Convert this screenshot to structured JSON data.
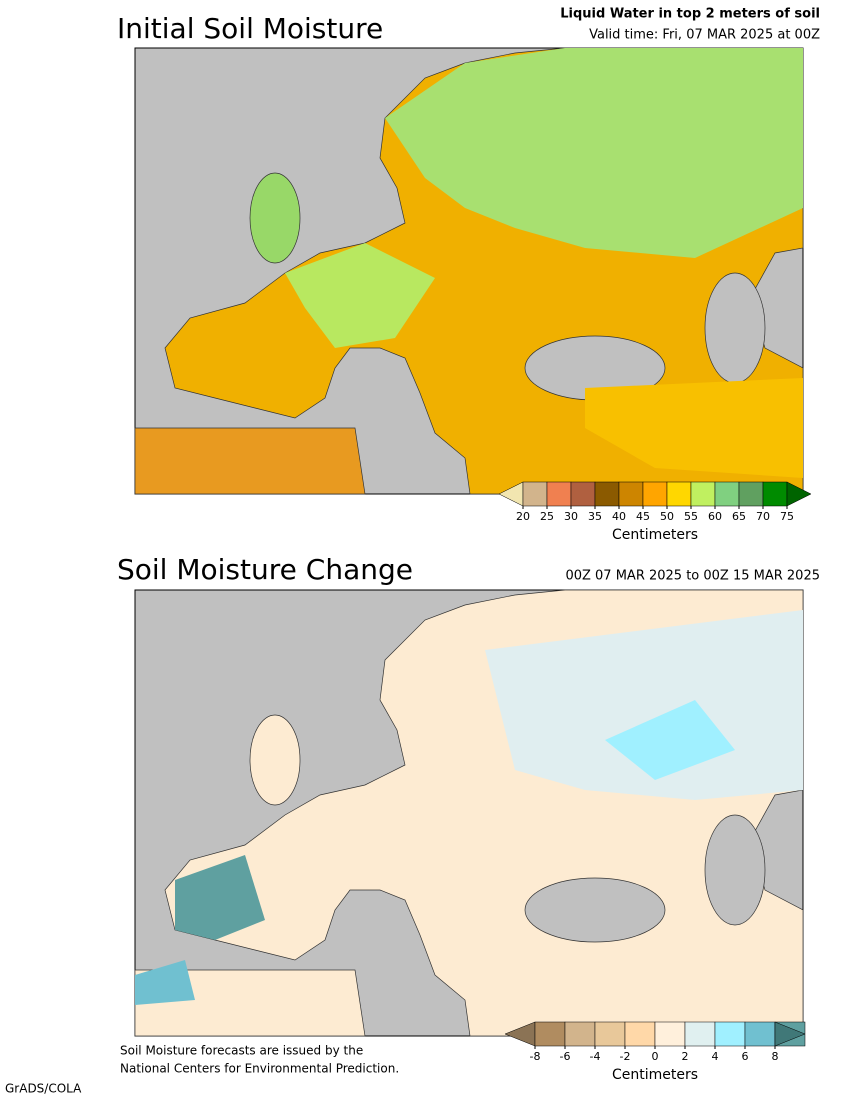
{
  "panels": [
    {
      "title": "Initial Soil Moisture",
      "subtitle_lines": [
        "Liquid Water in top 2 meters of soil",
        "Valid time: Fri, 07 MAR 2025 at 00Z"
      ],
      "colorbar": {
        "colors": [
          "#f2e6b0",
          "#d2b48c",
          "#f08050",
          "#b06040",
          "#8b5a00",
          "#cd8500",
          "#ffa500",
          "#ffd700",
          "#c0f060",
          "#80d080",
          "#60a060",
          "#008b00",
          "#006400"
        ],
        "ticks": [
          20,
          25,
          30,
          35,
          40,
          45,
          50,
          55,
          60,
          65,
          70,
          75
        ],
        "label": "Centimeters"
      }
    },
    {
      "title": "Soil Moisture Change",
      "subtitle_lines": [
        "00Z 07 MAR 2025 to 00Z 15 MAR 2025"
      ],
      "colorbar": {
        "colors": [
          "#8b7355",
          "#b08c60",
          "#d2b48c",
          "#e8c89a",
          "#ffd8a8",
          "#fff0dc",
          "#e0f0f0",
          "#a0f0ff",
          "#70c0d0",
          "#5fa0a0",
          "#407878"
        ],
        "ticks": [
          -8,
          -6,
          -4,
          -2,
          0,
          2,
          4,
          6,
          8
        ],
        "label": "Centimeters"
      }
    }
  ],
  "footer": {
    "note": [
      "Soil Moisture forecasts are issued by the",
      "National Centers for Environmental Prediction."
    ],
    "credit": "GrADS/COLA"
  }
}
